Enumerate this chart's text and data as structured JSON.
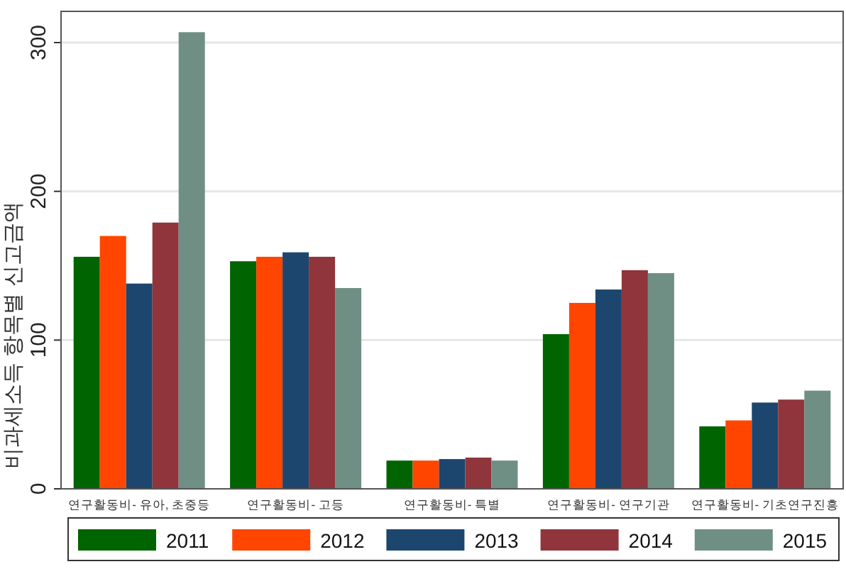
{
  "chart_data": {
    "type": "bar",
    "ylabel": "비과세소득 항목별 신고금액",
    "categories": [
      "연구활동비- 유아, 초중등",
      "연구활동비- 고등",
      "연구활동비- 특별",
      "연구활동비- 연구기관",
      "연구활동비- 기초연구진흥"
    ],
    "series": [
      {
        "name": "2011",
        "color": "#006400",
        "values": [
          156,
          153,
          19,
          104,
          42
        ]
      },
      {
        "name": "2012",
        "color": "#ff4500",
        "values": [
          170,
          156,
          19,
          125,
          46
        ]
      },
      {
        "name": "2013",
        "color": "#1c466e",
        "values": [
          138,
          159,
          20,
          134,
          58
        ]
      },
      {
        "name": "2014",
        "color": "#90353b",
        "values": [
          179,
          156,
          21,
          147,
          60
        ]
      },
      {
        "name": "2015",
        "color": "#6f8f85",
        "values": [
          307,
          135,
          19,
          145,
          66
        ]
      }
    ],
    "ylim": [
      0,
      321
    ],
    "yticks": [
      0,
      100,
      200,
      300
    ],
    "grid": "y",
    "legend": "bottom"
  }
}
